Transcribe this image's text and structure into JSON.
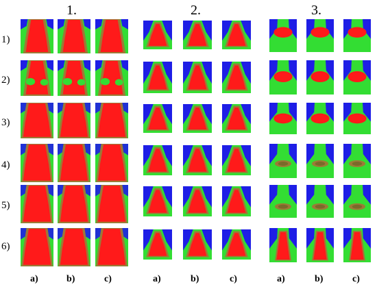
{
  "groups": [
    "1.",
    "2.",
    "3."
  ],
  "rows": [
    "1)",
    "2)",
    "3)",
    "4)",
    "5)",
    "6)"
  ],
  "columns": [
    "a)",
    "b)",
    "c)"
  ],
  "colors": {
    "background": "#1e1ee6",
    "outer": "#33dd33",
    "mid": "#9c7a36",
    "core": "#ff1a1a"
  }
}
